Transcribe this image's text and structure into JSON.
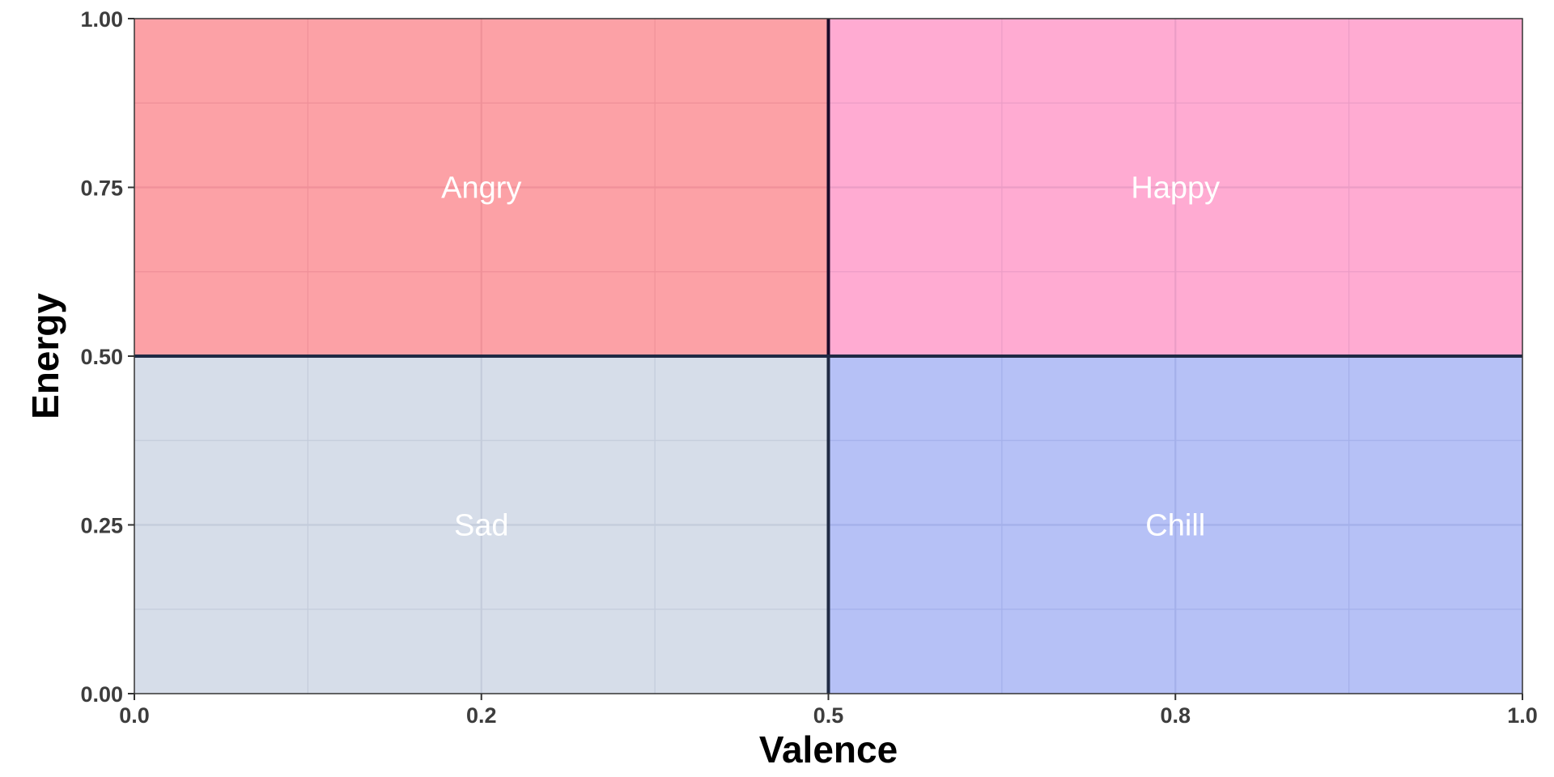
{
  "chart_data": {
    "type": "area",
    "title": "",
    "xlabel": "Valence",
    "ylabel": "Energy",
    "xlim": [
      0,
      1
    ],
    "ylim": [
      0,
      1
    ],
    "x_ticks": [
      0,
      0.25,
      0.5,
      0.75,
      1
    ],
    "x_tick_labels": [
      "0.0",
      "0.2",
      "0.5",
      "0.8",
      "1.0"
    ],
    "y_ticks": [
      0,
      0.25,
      0.5,
      0.75,
      1
    ],
    "y_tick_labels": [
      "0.00",
      "0.25",
      "0.50",
      "0.75",
      "1.00"
    ],
    "grid": true,
    "legend": "none",
    "regions": [
      {
        "label": "Angry",
        "x": [
          0,
          0.5
        ],
        "y": [
          0.5,
          1
        ],
        "fill": "#fca1a6",
        "border": "#000000"
      },
      {
        "label": "Happy",
        "x": [
          0.5,
          1
        ],
        "y": [
          0.5,
          1
        ],
        "fill": "#ffabd2",
        "border": "#1a0a2a"
      },
      {
        "label": "Sad",
        "x": [
          0,
          0.5
        ],
        "y": [
          0,
          0.5
        ],
        "fill": "#d6dde9",
        "border": "#1f2a44"
      },
      {
        "label": "Chill",
        "x": [
          0.5,
          1
        ],
        "y": [
          0,
          0.5
        ],
        "fill": "#b6c1f6",
        "border": "#1f2a44"
      }
    ],
    "colors": {
      "grid_on_red": "#ef9199",
      "grid_on_pink": "#eb9dc6",
      "grid_on_grey": "#c4ccdb",
      "grid_on_blue": "#a4b0ea",
      "frame": "#333333",
      "tick_text": "#3d3d3d"
    }
  }
}
